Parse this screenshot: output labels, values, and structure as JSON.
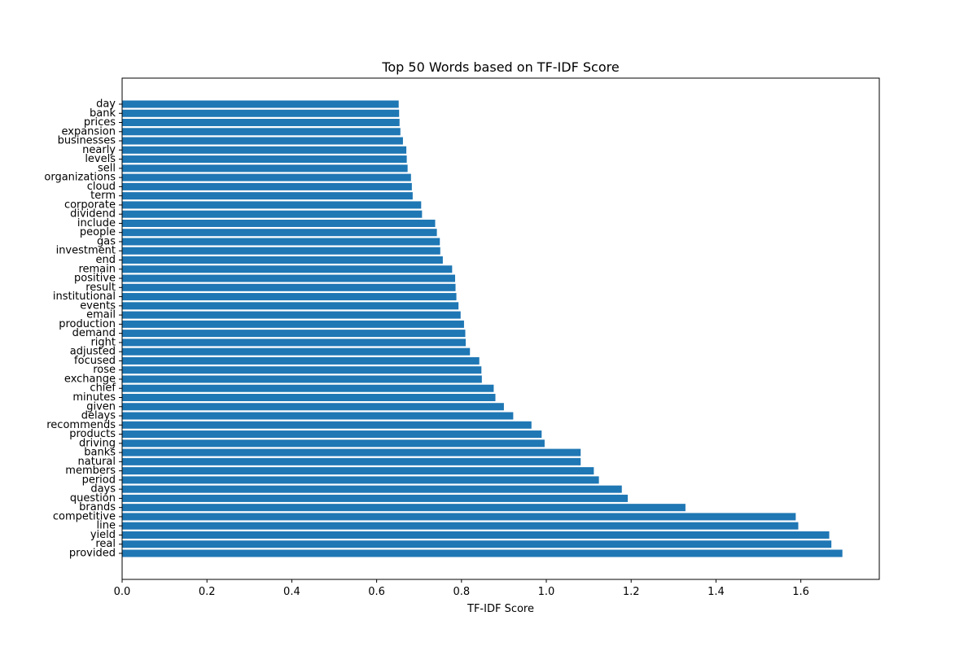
{
  "chart_data": {
    "type": "bar",
    "orientation": "horizontal",
    "title": "Top 50 Words based on TF-IDF Score",
    "xlabel": "TF-IDF Score",
    "ylabel": "",
    "xlim": [
      0,
      1.785
    ],
    "xticks": [
      0.0,
      0.2,
      0.4,
      0.6,
      0.8,
      1.0,
      1.2,
      1.4,
      1.6
    ],
    "xtick_labels": [
      "0.0",
      "0.2",
      "0.4",
      "0.6",
      "0.8",
      "1.0",
      "1.2",
      "1.4",
      "1.6"
    ],
    "grid": false,
    "bar_color": "#1f77b4",
    "categories": [
      "provided",
      "real",
      "yield",
      "line",
      "competitive",
      "brands",
      "question",
      "days",
      "period",
      "members",
      "natural",
      "banks",
      "driving",
      "products",
      "recommends",
      "delays",
      "given",
      "minutes",
      "chief",
      "exchange",
      "rose",
      "focused",
      "adjusted",
      "right",
      "demand",
      "production",
      "email",
      "events",
      "institutional",
      "result",
      "positive",
      "remain",
      "end",
      "investment",
      "gas",
      "people",
      "include",
      "dividend",
      "corporate",
      "term",
      "cloud",
      "organizations",
      "sell",
      "levels",
      "nearly",
      "businesses",
      "expansion",
      "prices",
      "bank",
      "day"
    ],
    "values": [
      1.698,
      1.672,
      1.667,
      1.594,
      1.588,
      1.328,
      1.192,
      1.178,
      1.124,
      1.112,
      1.081,
      1.081,
      0.996,
      0.989,
      0.965,
      0.922,
      0.9,
      0.88,
      0.876,
      0.848,
      0.847,
      0.842,
      0.82,
      0.81,
      0.809,
      0.806,
      0.798,
      0.793,
      0.788,
      0.786,
      0.785,
      0.778,
      0.756,
      0.75,
      0.749,
      0.742,
      0.738,
      0.707,
      0.705,
      0.685,
      0.683,
      0.681,
      0.673,
      0.671,
      0.67,
      0.662,
      0.656,
      0.654,
      0.653,
      0.652
    ]
  }
}
